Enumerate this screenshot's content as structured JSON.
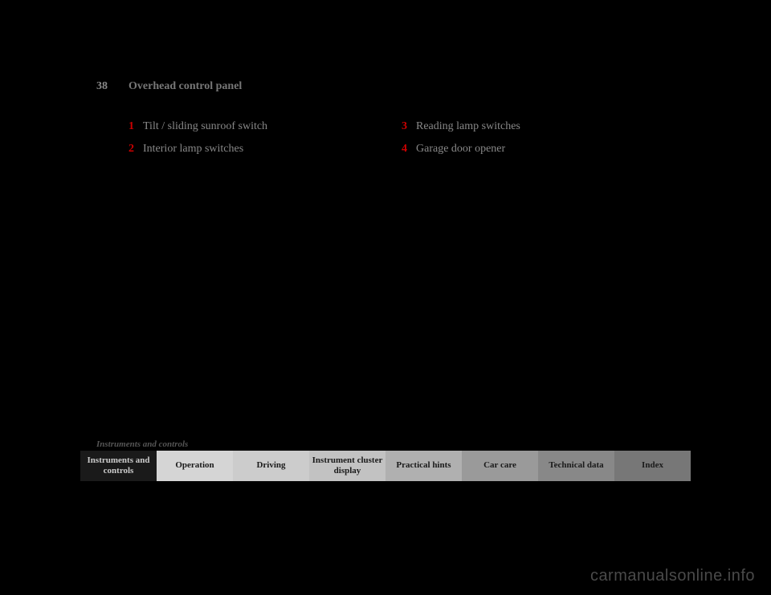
{
  "page_number": "38",
  "section_title": "Overhead control panel",
  "items": [
    {
      "num": "1",
      "text": "Tilt / sliding sunroof switch"
    },
    {
      "num": "2",
      "text": "Interior lamp switches"
    },
    {
      "num": "3",
      "text": "Reading lamp switches"
    },
    {
      "num": "4",
      "text": "Garage door opener"
    }
  ],
  "footer_label": "Instruments and controls",
  "tabs": [
    {
      "label": "Instruments and controls",
      "active": true
    },
    {
      "label": "Operation",
      "shade": "t1"
    },
    {
      "label": "Driving",
      "shade": "t2"
    },
    {
      "label": "Instrument cluster display",
      "shade": "t3"
    },
    {
      "label": "Practical hints",
      "shade": "t4"
    },
    {
      "label": "Car care",
      "shade": "t5"
    },
    {
      "label": "Technical data",
      "shade": "t6"
    },
    {
      "label": "Index",
      "shade": "t7"
    }
  ],
  "watermark": "carmanualsonline.info"
}
